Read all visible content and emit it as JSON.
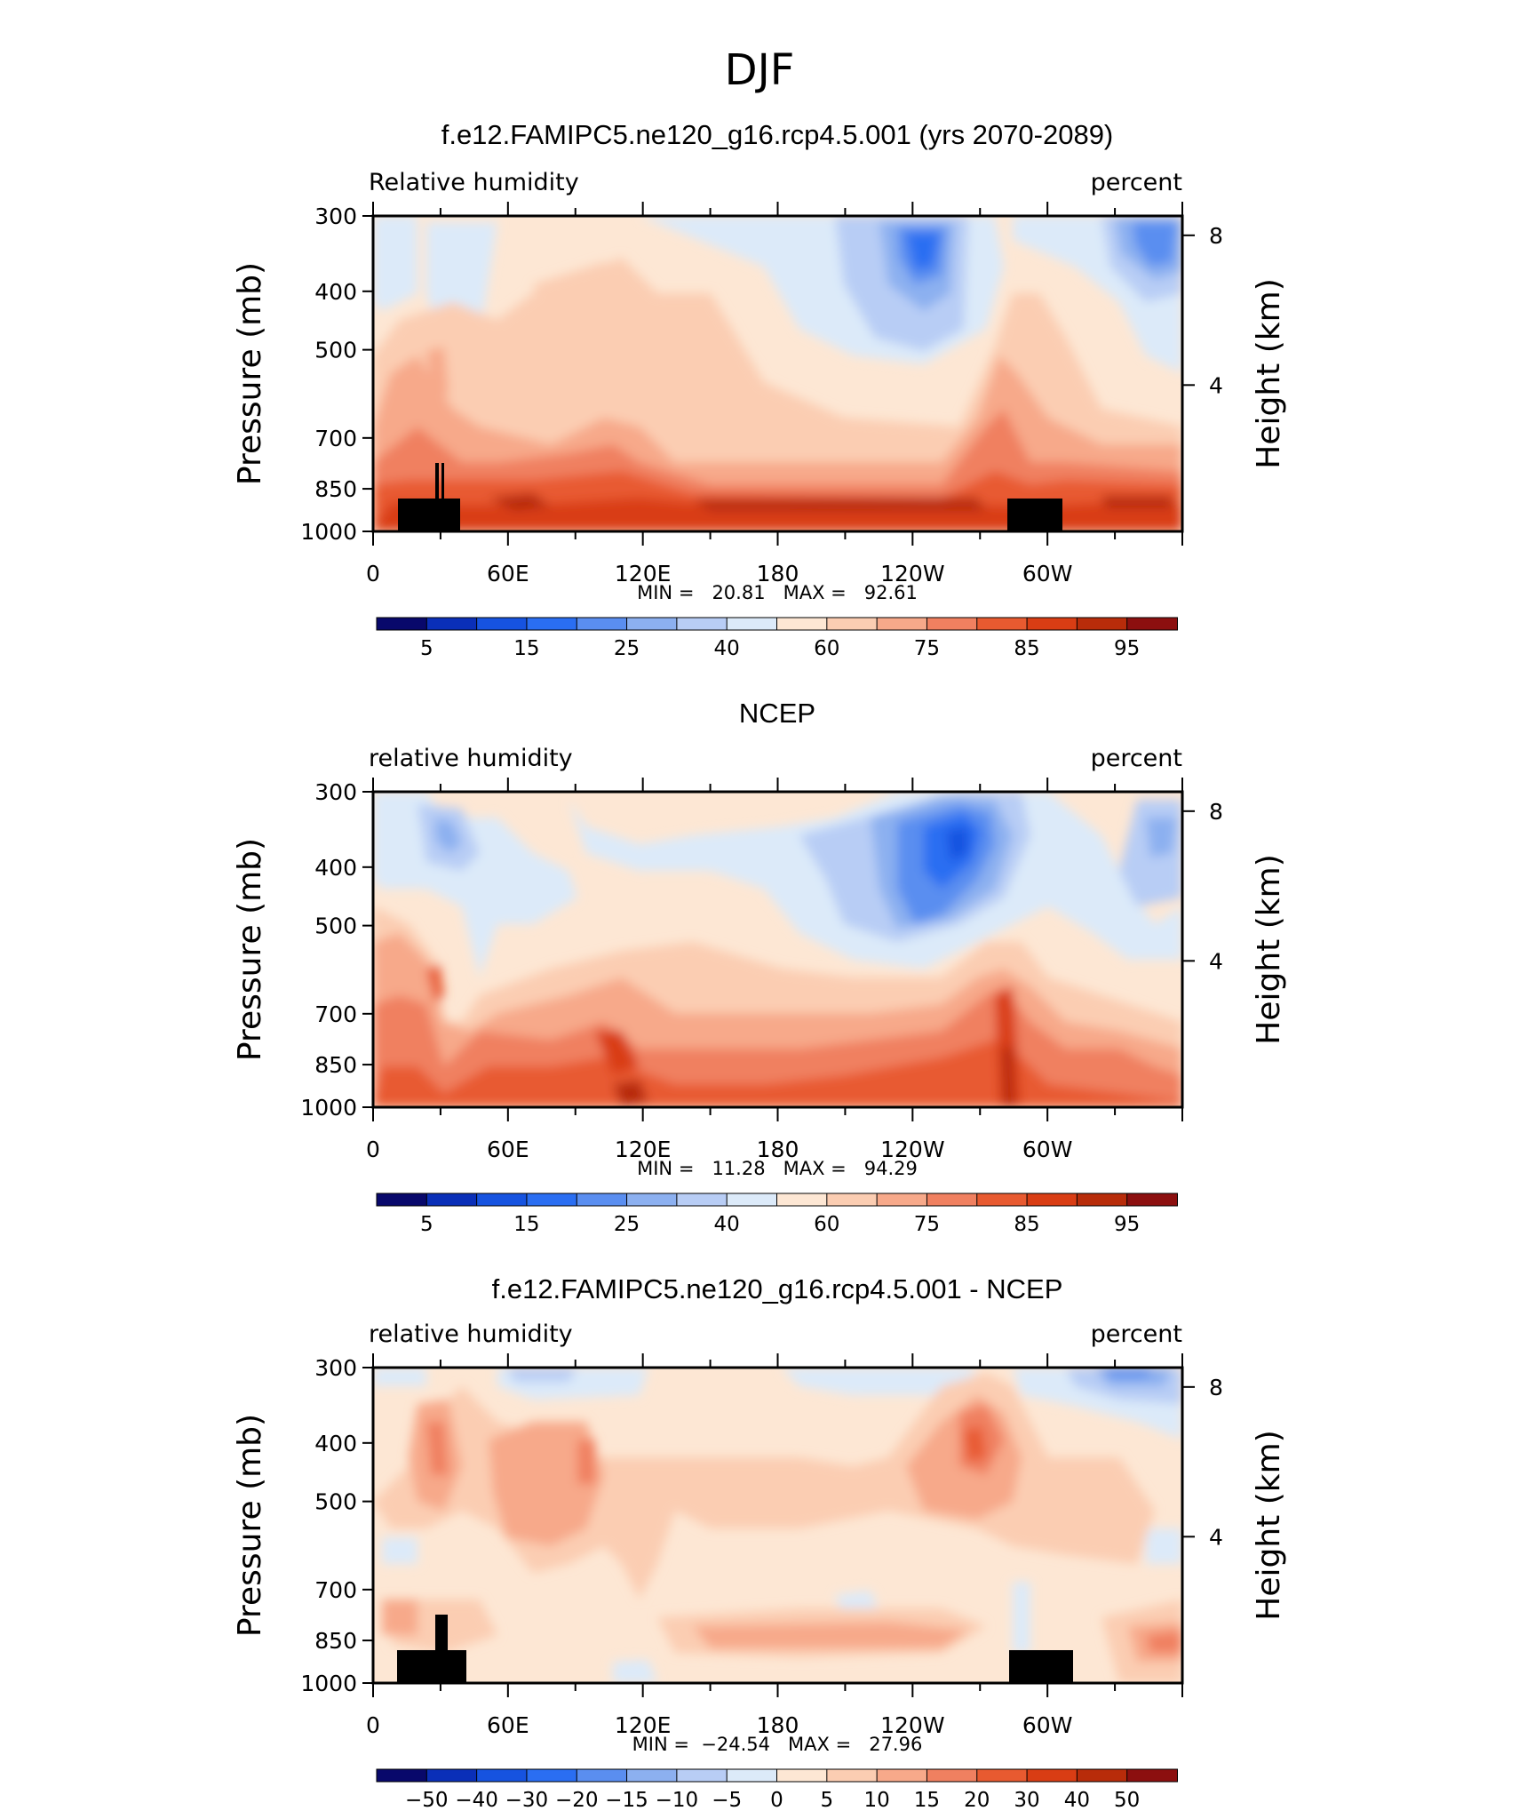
{
  "page": {
    "title": "DJF"
  },
  "chart_data": [
    {
      "type": "heatmap",
      "title": "f.e12.FAMIPC5.ne120_g16.rcp4.5.001 (yrs 2070-2089)",
      "left_string": "Relative humidity",
      "right_string": "percent",
      "ylabel": "Pressure (mb)",
      "y2label": "Height (km)",
      "yticks": [
        "300",
        "400",
        "500",
        "700",
        "850",
        "1000"
      ],
      "y2ticks": [
        "8",
        "4"
      ],
      "xticks": [
        "0",
        "60E",
        "120E",
        "180",
        "120W",
        "60W"
      ],
      "stats": "MIN =   20.81   MAX =   92.61",
      "colorbar_labels": [
        "5",
        "15",
        "25",
        "40",
        "60",
        "75",
        "85",
        "95"
      ]
    },
    {
      "type": "heatmap",
      "title": "NCEP",
      "left_string": "relative humidity",
      "right_string": "percent",
      "ylabel": "Pressure (mb)",
      "y2label": "Height (km)",
      "yticks": [
        "300",
        "400",
        "500",
        "700",
        "850",
        "1000"
      ],
      "y2ticks": [
        "8",
        "4"
      ],
      "xticks": [
        "0",
        "60E",
        "120E",
        "180",
        "120W",
        "60W"
      ],
      "stats": "MIN =   11.28   MAX =   94.29",
      "colorbar_labels": [
        "5",
        "15",
        "25",
        "40",
        "60",
        "75",
        "85",
        "95"
      ]
    },
    {
      "type": "heatmap",
      "title": "f.e12.FAMIPC5.ne120_g16.rcp4.5.001 - NCEP",
      "left_string": "relative humidity",
      "right_string": "percent",
      "ylabel": "Pressure (mb)",
      "y2label": "Height (km)",
      "yticks": [
        "300",
        "400",
        "500",
        "700",
        "850",
        "1000"
      ],
      "y2ticks": [
        "8",
        "4"
      ],
      "xticks": [
        "0",
        "60E",
        "120E",
        "180",
        "120W",
        "60W"
      ],
      "stats": "MIN =  −24.54   MAX =   27.96",
      "colorbar_labels": [
        "−50",
        "−40",
        "−30",
        "−20",
        "−15",
        "−10",
        "−5",
        "0",
        "5",
        "10",
        "15",
        "20",
        "30",
        "40",
        "50"
      ]
    }
  ],
  "colors": {
    "scale": [
      "#08086b",
      "#0a2fb8",
      "#1653e0",
      "#2a6ef2",
      "#5a8ef0",
      "#8cb0f0",
      "#b8cdf5",
      "#dceaf9",
      "#fde7d4",
      "#fbcdb2",
      "#f7a98a",
      "#f08060",
      "#e85a30",
      "#d93d14",
      "#b82c0a",
      "#8c0f0f"
    ]
  }
}
